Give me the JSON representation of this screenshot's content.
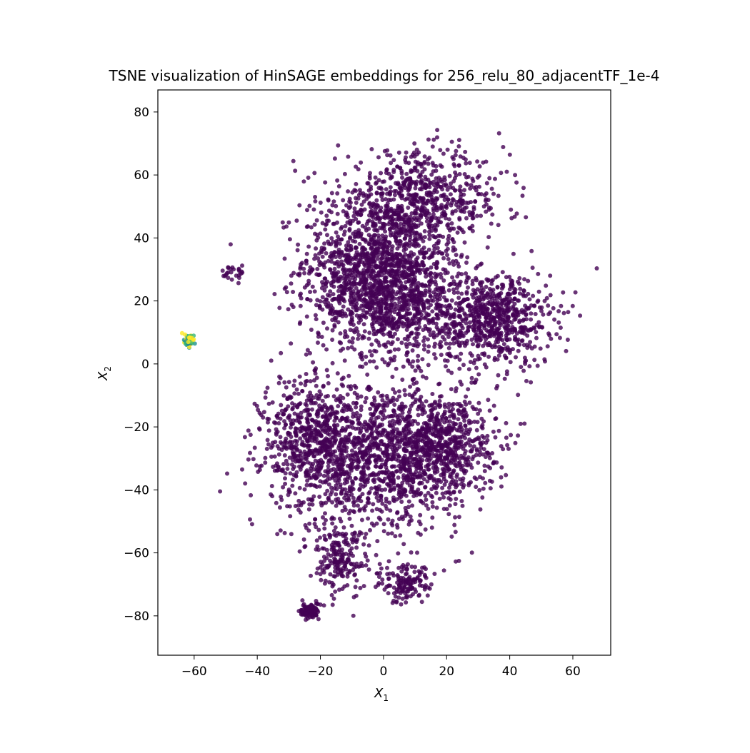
{
  "chart_data": {
    "type": "scatter",
    "title": "TSNE visualization of HinSAGE embeddings for 256_relu_80_adjacentTF_1e-4",
    "xlabel": "X",
    "xlabel_sub": "1",
    "ylabel": "X",
    "ylabel_sub": "2",
    "xlim": [
      -71.5,
      72
    ],
    "ylim": [
      -92.5,
      87
    ],
    "xticks": [
      -60,
      -40,
      -20,
      0,
      20,
      40,
      60
    ],
    "yticks": [
      -80,
      -60,
      -40,
      -20,
      0,
      20,
      40,
      60,
      80
    ],
    "grid": false,
    "legend": "none",
    "colormap": "viridis",
    "colors": {
      "main": "#440154",
      "outlier_yellow": "#fde725",
      "outlier_green": "#35b779",
      "outlier_teal": "#21918c"
    },
    "clusters": [
      {
        "label": "upper-left lobe",
        "center": [
          -3,
          33
        ],
        "spread": [
          15,
          14
        ],
        "color": "main"
      },
      {
        "label": "upper-center lobe",
        "center": [
          3,
          20
        ],
        "spread": [
          16,
          12
        ],
        "color": "main"
      },
      {
        "label": "upper-right lobe",
        "center": [
          35,
          14
        ],
        "spread": [
          12,
          10
        ],
        "color": "main"
      },
      {
        "label": "upper-top lobe",
        "center": [
          12,
          52
        ],
        "spread": [
          18,
          10
        ],
        "color": "main"
      },
      {
        "label": "lower-left lobe",
        "center": [
          -22,
          -25
        ],
        "spread": [
          11,
          14
        ],
        "color": "main"
      },
      {
        "label": "lower-center lobe",
        "center": [
          0,
          -30
        ],
        "spread": [
          16,
          16
        ],
        "color": "main"
      },
      {
        "label": "lower-right lobe",
        "center": [
          18,
          -25
        ],
        "spread": [
          12,
          11
        ],
        "color": "main"
      },
      {
        "label": "bottom-left tail",
        "center": [
          -14,
          -62
        ],
        "spread": [
          6,
          7
        ],
        "color": "main"
      },
      {
        "label": "bottom-right tail",
        "center": [
          7,
          -70
        ],
        "spread": [
          6,
          4
        ],
        "color": "main"
      },
      {
        "label": "small bottom cluster",
        "center": [
          -23.5,
          -78.5
        ],
        "spread": [
          2,
          1.8
        ],
        "color": "main"
      },
      {
        "label": "far-left small group",
        "center": [
          -47,
          29
        ],
        "spread": [
          2.5,
          2
        ],
        "color": "main"
      },
      {
        "label": "outlier cluster",
        "center": [
          -61.5,
          7.5
        ],
        "spread": [
          1.2,
          1.3
        ],
        "color": "outlier"
      }
    ]
  }
}
